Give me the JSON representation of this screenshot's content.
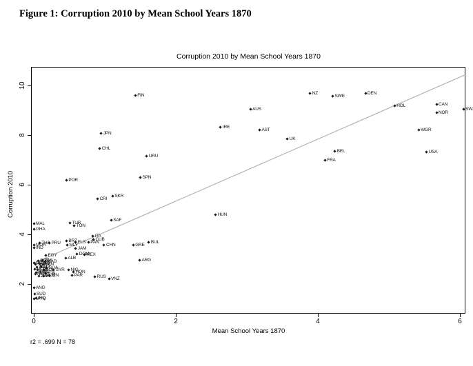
{
  "page": {
    "heading": "Figure 1: Corruption 2010 by Mean School Years 1870",
    "footnote": "r2 = .699  N = 78"
  },
  "chart_data": {
    "type": "scatter",
    "title": "Corruption 2010 by Mean School Years 1870",
    "xlabel": "Mean School Years 1870",
    "ylabel": "Corruption 2010",
    "xlim": [
      -0.04,
      6.09
    ],
    "ylim": [
      0.8,
      10.75
    ],
    "xticks": [
      0,
      2,
      4,
      6
    ],
    "yticks": [
      2,
      4,
      6,
      8,
      10
    ],
    "grid": false,
    "legend": "none",
    "stats": {
      "r2": ".699",
      "N": "78"
    },
    "regression_line": {
      "x1": 0,
      "y1": 2.84,
      "x2": 6.09,
      "y2": 10.45,
      "color": "#b3b3b3"
    },
    "marker_color": "#1a1a1a",
    "points": [
      {
        "label": "FIN",
        "x": 1.43,
        "y": 9.61
      },
      {
        "label": "NZ",
        "x": 3.89,
        "y": 9.69
      },
      {
        "label": "SWE",
        "x": 4.21,
        "y": 9.58
      },
      {
        "label": "DEN",
        "x": 4.67,
        "y": 9.69
      },
      {
        "label": "HOL",
        "x": 5.08,
        "y": 9.17
      },
      {
        "label": "CAN",
        "x": 5.67,
        "y": 9.25
      },
      {
        "label": "NOR",
        "x": 5.67,
        "y": 8.89
      },
      {
        "label": "SWZ",
        "x": 6.05,
        "y": 9.03
      },
      {
        "label": "AUS",
        "x": 3.05,
        "y": 9.03
      },
      {
        "label": "IRE",
        "x": 2.63,
        "y": 8.31
      },
      {
        "label": "AST",
        "x": 3.18,
        "y": 8.22
      },
      {
        "label": "WGR",
        "x": 5.42,
        "y": 8.22
      },
      {
        "label": "JPN",
        "x": 0.95,
        "y": 8.08
      },
      {
        "label": "UK",
        "x": 3.57,
        "y": 7.86
      },
      {
        "label": "CHL",
        "x": 0.93,
        "y": 7.47
      },
      {
        "label": "BEL",
        "x": 4.24,
        "y": 7.36
      },
      {
        "label": "USA",
        "x": 5.53,
        "y": 7.33
      },
      {
        "label": "URU",
        "x": 1.59,
        "y": 7.14
      },
      {
        "label": "FRA",
        "x": 4.1,
        "y": 7.0
      },
      {
        "label": "POR",
        "x": 0.46,
        "y": 6.17
      },
      {
        "label": "SPN",
        "x": 1.5,
        "y": 6.28
      },
      {
        "label": "CRI",
        "x": 0.9,
        "y": 5.42
      },
      {
        "label": "SKR",
        "x": 1.11,
        "y": 5.53
      },
      {
        "label": "SAF",
        "x": 1.09,
        "y": 4.58
      },
      {
        "label": "HUN",
        "x": 2.56,
        "y": 4.78
      },
      {
        "label": "MAL",
        "x": 0.0,
        "y": 4.44
      },
      {
        "label": "TUR",
        "x": 0.51,
        "y": 4.47
      },
      {
        "label": "TON",
        "x": 0.57,
        "y": 4.36
      },
      {
        "label": "GHA",
        "x": 0.0,
        "y": 4.22
      },
      {
        "label": "BRZ",
        "x": 0.46,
        "y": 3.75
      },
      {
        "label": "ELS",
        "x": 0.59,
        "y": 3.67
      },
      {
        "label": "ITA",
        "x": 0.83,
        "y": 3.94
      },
      {
        "label": "CUB",
        "x": 0.84,
        "y": 3.78
      },
      {
        "label": "PAN",
        "x": 0.77,
        "y": 3.67
      },
      {
        "label": "CHN",
        "x": 0.99,
        "y": 3.56
      },
      {
        "label": "GRE",
        "x": 1.4,
        "y": 3.58
      },
      {
        "label": "BUL",
        "x": 1.62,
        "y": 3.67
      },
      {
        "label": "ARG",
        "x": 1.49,
        "y": 2.97
      },
      {
        "label": "THA",
        "x": 0.08,
        "y": 3.64
      },
      {
        "label": "PRU",
        "x": 0.22,
        "y": 3.64
      },
      {
        "label": "MOR",
        "x": 0.0,
        "y": 3.58
      },
      {
        "label": "IND",
        "x": 0.0,
        "y": 3.47
      },
      {
        "label": "MLY",
        "x": 0.47,
        "y": 3.56
      },
      {
        "label": "JAM",
        "x": 0.59,
        "y": 3.42
      },
      {
        "label": "EGY",
        "x": 0.17,
        "y": 3.14
      },
      {
        "label": "ALB",
        "x": 0.45,
        "y": 3.03
      },
      {
        "label": "DOM",
        "x": 0.61,
        "y": 3.22
      },
      {
        "label": "MEX",
        "x": 0.71,
        "y": 3.17
      },
      {
        "label": "SYR",
        "x": 0.28,
        "y": 2.56
      },
      {
        "label": "NIG",
        "x": 0.49,
        "y": 2.58
      },
      {
        "label": "HON",
        "x": 0.56,
        "y": 2.5
      },
      {
        "label": "PAR",
        "x": 0.54,
        "y": 2.36
      },
      {
        "label": "KEN",
        "x": 0.14,
        "y": 2.31
      },
      {
        "label": "IRN",
        "x": 0.22,
        "y": 2.36
      },
      {
        "label": "RUS",
        "x": 0.86,
        "y": 2.28
      },
      {
        "label": "VNZ",
        "x": 1.06,
        "y": 2.22
      },
      {
        "label": "ANG",
        "x": 0.0,
        "y": 1.86
      },
      {
        "label": "SUD",
        "x": 0.01,
        "y": 1.61
      },
      {
        "label": "MYN",
        "x": 0.0,
        "y": 1.39
      },
      {
        "label": "IRQ",
        "x": 0.03,
        "y": 1.44
      },
      {
        "label": "BGD",
        "x": 0.06,
        "y": 2.92
      },
      {
        "label": "PAK",
        "x": 0.12,
        "y": 2.95
      },
      {
        "label": "MAD",
        "x": 0.16,
        "y": 2.89
      },
      {
        "label": "UGA",
        "x": 0.0,
        "y": 2.86
      },
      {
        "label": "ZAM",
        "x": 0.08,
        "y": 2.83
      },
      {
        "label": "SEN",
        "x": 0.02,
        "y": 2.78
      },
      {
        "label": "BEN",
        "x": 0.13,
        "y": 2.78
      },
      {
        "label": "CIV",
        "x": 0.1,
        "y": 2.72
      },
      {
        "label": "TAN",
        "x": 0.04,
        "y": 2.69
      },
      {
        "label": "GUA",
        "x": 0.18,
        "y": 2.64
      },
      {
        "label": "MOZ",
        "x": 0.01,
        "y": 2.61
      },
      {
        "label": "BOL",
        "x": 0.14,
        "y": 2.58
      },
      {
        "label": "ETH",
        "x": 0.05,
        "y": 2.56
      },
      {
        "label": "NIC",
        "x": 0.09,
        "y": 2.5
      },
      {
        "label": "CAM",
        "x": 0.03,
        "y": 2.47
      },
      {
        "label": "IDN",
        "x": 0.17,
        "y": 2.44
      },
      {
        "label": "NEP",
        "x": 0.02,
        "y": 2.39
      },
      {
        "label": "ZIM",
        "x": 0.07,
        "y": 2.33
      }
    ]
  }
}
